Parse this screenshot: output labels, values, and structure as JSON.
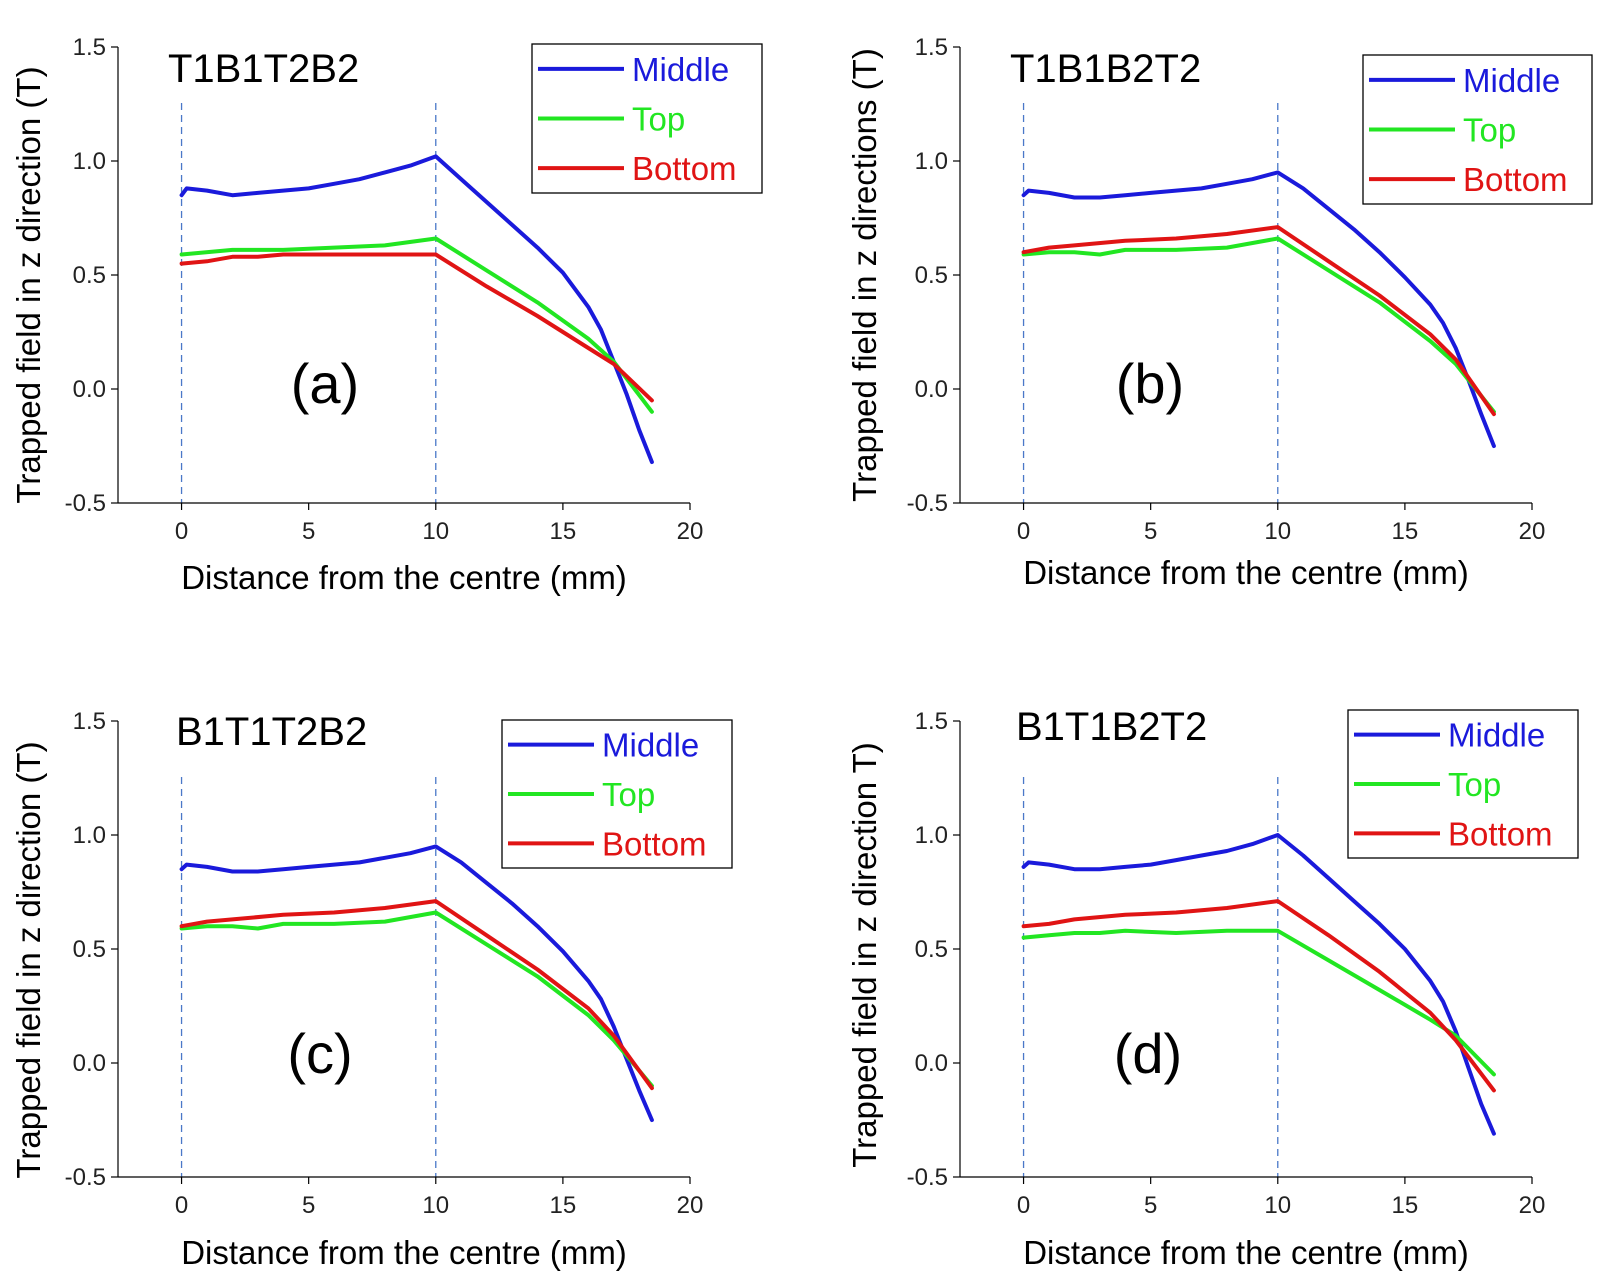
{
  "colors": {
    "Middle": "#1a1adb",
    "Top": "#22e622",
    "Bottom": "#e01414",
    "axis": "#000000",
    "guide": "#4a78c8"
  },
  "chart_data": [
    {
      "type": "line",
      "title": "T1B1T2B2",
      "panel_label": "(a)",
      "xlabel": "Distance from the centre (mm)",
      "ylabel": "Trapped field in z direction (T)",
      "xlim": [
        -2.5,
        20
      ],
      "ylim": [
        -0.5,
        1.5
      ],
      "xticks": [
        0,
        5,
        10,
        15,
        20
      ],
      "yticks": [
        -0.5,
        0.0,
        0.5,
        1.0,
        1.5
      ],
      "ytick_labels": [
        "-0.5",
        "0.0",
        "0.5",
        "1.0",
        "1.5"
      ],
      "guide_lines_x": [
        0,
        10
      ],
      "legend_position": "top-right",
      "series": [
        {
          "name": "Middle",
          "x": [
            0,
            0.2,
            1,
            2,
            3,
            4,
            5,
            6,
            7,
            8,
            9,
            10,
            11,
            12,
            13,
            14,
            15,
            16,
            16.5,
            17,
            17.5,
            18,
            18.5
          ],
          "y": [
            0.85,
            0.88,
            0.87,
            0.85,
            0.86,
            0.87,
            0.88,
            0.9,
            0.92,
            0.95,
            0.98,
            1.02,
            0.92,
            0.82,
            0.72,
            0.62,
            0.51,
            0.36,
            0.26,
            0.12,
            -0.02,
            -0.18,
            -0.32
          ]
        },
        {
          "name": "Top",
          "x": [
            0,
            2,
            4,
            6,
            8,
            10,
            12,
            14,
            16,
            17,
            18.5
          ],
          "y": [
            0.59,
            0.61,
            0.61,
            0.62,
            0.63,
            0.66,
            0.52,
            0.38,
            0.22,
            0.12,
            -0.1
          ]
        },
        {
          "name": "Bottom",
          "x": [
            0,
            1,
            2,
            3,
            4,
            6,
            8,
            10,
            12,
            14,
            16,
            17,
            18.5
          ],
          "y": [
            0.55,
            0.56,
            0.58,
            0.58,
            0.59,
            0.59,
            0.59,
            0.59,
            0.45,
            0.32,
            0.18,
            0.11,
            -0.05
          ]
        }
      ]
    },
    {
      "type": "line",
      "title": "T1B1B2T2",
      "panel_label": "(b)",
      "xlabel": "Distance from the centre (mm)",
      "ylabel": "Trapped field in z directions (T)",
      "xlim": [
        -2.5,
        20
      ],
      "ylim": [
        -0.5,
        1.5
      ],
      "xticks": [
        0,
        5,
        10,
        15,
        20
      ],
      "yticks": [
        -0.5,
        0.0,
        0.5,
        1.0,
        1.5
      ],
      "ytick_labels": [
        "-0.5",
        "0.0",
        "0.5",
        "1.0",
        "1.5"
      ],
      "guide_lines_x": [
        0,
        10
      ],
      "legend_position": "top-right",
      "series": [
        {
          "name": "Middle",
          "x": [
            0,
            0.2,
            1,
            2,
            3,
            4,
            5,
            6,
            7,
            8,
            9,
            10,
            11,
            12,
            13,
            14,
            15,
            16,
            16.5,
            17,
            17.5,
            18,
            18.5
          ],
          "y": [
            0.85,
            0.87,
            0.86,
            0.84,
            0.84,
            0.85,
            0.86,
            0.87,
            0.88,
            0.9,
            0.92,
            0.95,
            0.88,
            0.79,
            0.7,
            0.6,
            0.49,
            0.37,
            0.29,
            0.18,
            0.04,
            -0.11,
            -0.25
          ]
        },
        {
          "name": "Top",
          "x": [
            0,
            1,
            2,
            3,
            4,
            6,
            8,
            10,
            12,
            14,
            16,
            17,
            18.5
          ],
          "y": [
            0.59,
            0.6,
            0.6,
            0.59,
            0.61,
            0.61,
            0.62,
            0.66,
            0.52,
            0.38,
            0.21,
            0.11,
            -0.1
          ]
        },
        {
          "name": "Bottom",
          "x": [
            0,
            1,
            2,
            4,
            6,
            8,
            10,
            12,
            14,
            16,
            17,
            18.5
          ],
          "y": [
            0.6,
            0.62,
            0.63,
            0.65,
            0.66,
            0.68,
            0.71,
            0.56,
            0.41,
            0.24,
            0.13,
            -0.11
          ]
        }
      ]
    },
    {
      "type": "line",
      "title": "B1T1T2B2",
      "panel_label": "(c)",
      "xlabel": "Distance from the centre (mm)",
      "ylabel": "Trapped field in z direction (T)",
      "xlim": [
        -2.5,
        20
      ],
      "ylim": [
        -0.5,
        1.5
      ],
      "xticks": [
        0,
        5,
        10,
        15,
        20
      ],
      "yticks": [
        -0.5,
        0.0,
        0.5,
        1.0,
        1.5
      ],
      "ytick_labels": [
        "-0.5",
        "0.0",
        "0.5",
        "1.0",
        "1.5"
      ],
      "guide_lines_x": [
        0,
        10
      ],
      "legend_position": "top-right",
      "series": [
        {
          "name": "Middle",
          "x": [
            0,
            0.2,
            1,
            2,
            3,
            4,
            5,
            6,
            7,
            8,
            9,
            10,
            11,
            12,
            13,
            14,
            15,
            16,
            16.5,
            17,
            17.5,
            18,
            18.5
          ],
          "y": [
            0.85,
            0.87,
            0.86,
            0.84,
            0.84,
            0.85,
            0.86,
            0.87,
            0.88,
            0.9,
            0.92,
            0.95,
            0.88,
            0.79,
            0.7,
            0.6,
            0.49,
            0.36,
            0.28,
            0.16,
            0.02,
            -0.12,
            -0.25
          ]
        },
        {
          "name": "Top",
          "x": [
            0,
            1,
            2,
            3,
            4,
            6,
            8,
            10,
            12,
            14,
            16,
            17,
            18.5
          ],
          "y": [
            0.59,
            0.6,
            0.6,
            0.59,
            0.61,
            0.61,
            0.62,
            0.66,
            0.52,
            0.38,
            0.21,
            0.1,
            -0.1
          ]
        },
        {
          "name": "Bottom",
          "x": [
            0,
            1,
            2,
            4,
            6,
            8,
            10,
            12,
            14,
            16,
            17,
            18.5
          ],
          "y": [
            0.6,
            0.62,
            0.63,
            0.65,
            0.66,
            0.68,
            0.71,
            0.56,
            0.41,
            0.24,
            0.12,
            -0.11
          ]
        }
      ]
    },
    {
      "type": "line",
      "title": "B1T1B2T2",
      "panel_label": "(d)",
      "xlabel": "Distance from the centre (mm)",
      "ylabel": "Trapped field in z direction T)",
      "xlim": [
        -2.5,
        20
      ],
      "ylim": [
        -0.5,
        1.5
      ],
      "xticks": [
        0,
        5,
        10,
        15,
        20
      ],
      "yticks": [
        -0.5,
        0.0,
        0.5,
        1.0,
        1.5
      ],
      "ytick_labels": [
        "-0.5",
        "0.0",
        "0.5",
        "1.0",
        "1.5"
      ],
      "guide_lines_x": [
        0,
        10
      ],
      "legend_position": "top-right",
      "series": [
        {
          "name": "Middle",
          "x": [
            0,
            0.2,
            1,
            2,
            3,
            4,
            5,
            6,
            7,
            8,
            9,
            10,
            11,
            12,
            13,
            14,
            15,
            16,
            16.5,
            17,
            17.5,
            18,
            18.5
          ],
          "y": [
            0.86,
            0.88,
            0.87,
            0.85,
            0.85,
            0.86,
            0.87,
            0.89,
            0.91,
            0.93,
            0.96,
            1.0,
            0.91,
            0.81,
            0.71,
            0.61,
            0.5,
            0.36,
            0.27,
            0.14,
            -0.02,
            -0.18,
            -0.31
          ]
        },
        {
          "name": "Top",
          "x": [
            0,
            1,
            2,
            3,
            4,
            6,
            8,
            10,
            12,
            14,
            16,
            17,
            18.5
          ],
          "y": [
            0.55,
            0.56,
            0.57,
            0.57,
            0.58,
            0.57,
            0.58,
            0.58,
            0.45,
            0.32,
            0.19,
            0.12,
            -0.05
          ]
        },
        {
          "name": "Bottom",
          "x": [
            0,
            1,
            2,
            4,
            6,
            8,
            10,
            12,
            14,
            16,
            17,
            18.5
          ],
          "y": [
            0.6,
            0.61,
            0.63,
            0.65,
            0.66,
            0.68,
            0.71,
            0.56,
            0.4,
            0.22,
            0.1,
            -0.12
          ]
        }
      ]
    }
  ]
}
